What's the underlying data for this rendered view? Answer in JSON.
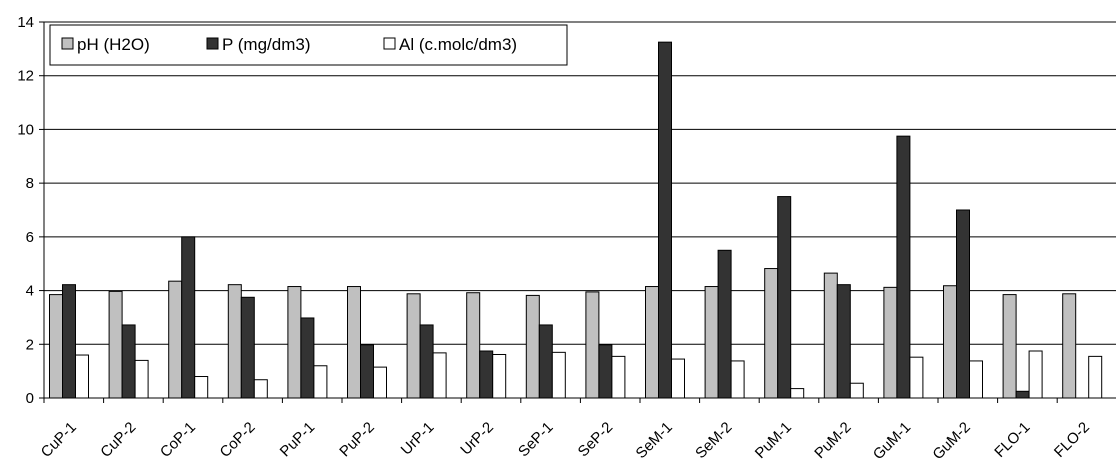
{
  "chart_data": {
    "type": "bar",
    "title": "",
    "xlabel": "",
    "ylabel": "",
    "ylim": [
      0,
      14
    ],
    "yticks": [
      "0",
      "2",
      "4",
      "6",
      "8",
      "10",
      "12",
      "14"
    ],
    "grid": true,
    "legend_position": "top-left",
    "categories": [
      "CuP-1",
      "CuP-2",
      "CoP-1",
      "CoP-2",
      "PuP-1",
      "PuP-2",
      "UrP-1",
      "UrP-2",
      "SeP-1",
      "SeP-2",
      "SeM-1",
      "SeM-2",
      "PuM-1",
      "PuM-2",
      "GuM-1",
      "GuM-2",
      "FLO-1",
      "FLO-2"
    ],
    "series": [
      {
        "name": "pH (H2O)",
        "color": "#c0c0c0",
        "values": [
          3.85,
          3.97,
          4.35,
          4.22,
          4.15,
          4.15,
          3.88,
          3.92,
          3.82,
          3.95,
          4.15,
          4.15,
          4.82,
          4.65,
          4.12,
          4.18,
          3.85,
          3.88
        ]
      },
      {
        "name": "P (mg/dm3)",
        "color": "#333333",
        "values": [
          4.22,
          2.72,
          6.0,
          3.75,
          2.98,
          1.98,
          2.72,
          1.75,
          2.72,
          1.98,
          13.25,
          5.5,
          7.5,
          4.22,
          9.75,
          7.0,
          0.25,
          0.0
        ]
      },
      {
        "name": "Al (c.molc/dm3)",
        "color": "#ffffff",
        "values": [
          1.6,
          1.4,
          0.8,
          0.68,
          1.2,
          1.15,
          1.68,
          1.62,
          1.7,
          1.55,
          1.45,
          1.38,
          0.35,
          0.55,
          1.52,
          1.38,
          1.75,
          1.55
        ]
      }
    ]
  }
}
